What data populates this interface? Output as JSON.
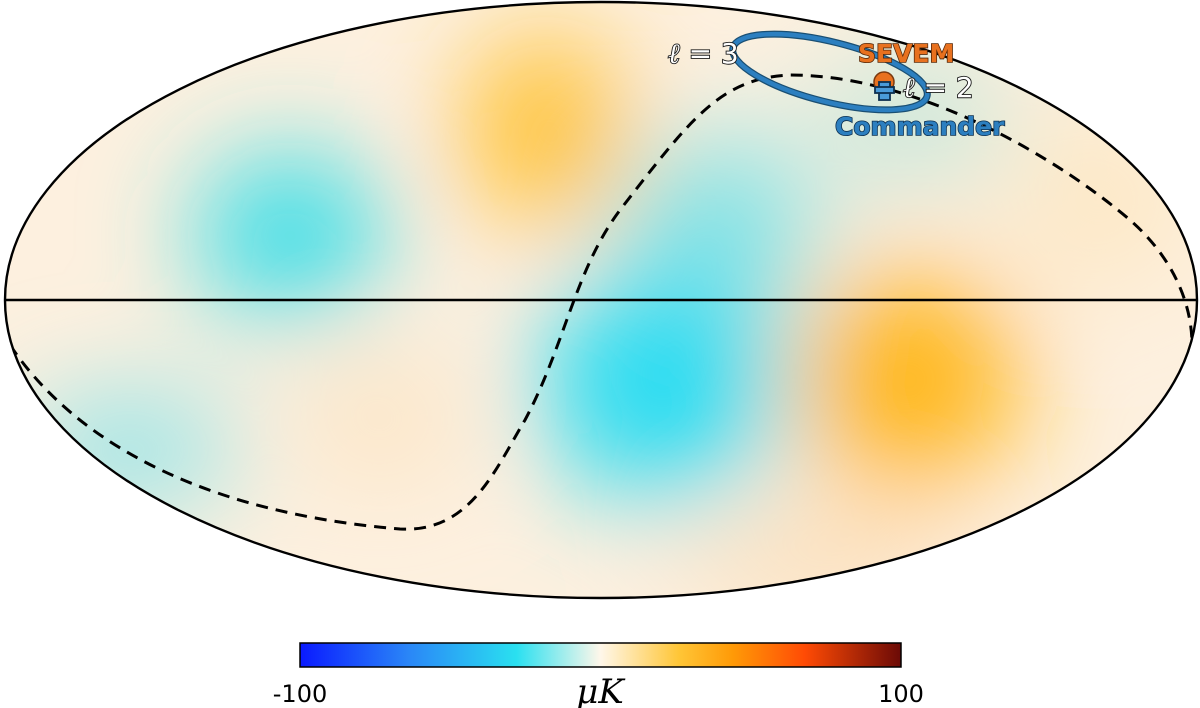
{
  "map": {
    "labels": {
      "l3": {
        "ell": "ℓ",
        "rest": " = 3"
      },
      "l2": {
        "ell": "ℓ",
        "rest": " = 2"
      },
      "sevem": "SEVEM",
      "commander": "Commander"
    },
    "colors": {
      "sevem": "#e8711f",
      "commander": "#1f77b4",
      "commander_fill": "#4a9ad8"
    }
  },
  "colorbar": {
    "min_label": "-100",
    "max_label": "100",
    "unit": "μK",
    "range": [
      -100,
      100
    ],
    "stops": [
      "#0a1aff",
      "#2a86f7",
      "#2ae0f0",
      "#fff7ea",
      "#ffc637",
      "#ff9a07",
      "#ff4b05",
      "#6b0a06"
    ]
  }
}
